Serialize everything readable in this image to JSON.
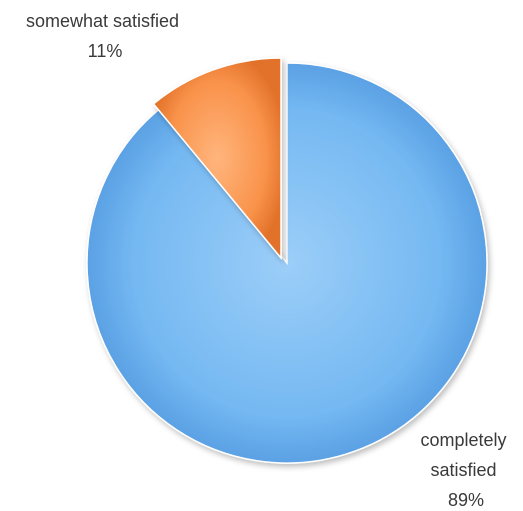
{
  "chart_data": {
    "type": "pie",
    "slices": [
      {
        "label_lines": [
          "completely",
          "satisfied"
        ],
        "percent_label": "89%",
        "value": 89,
        "color": "#5aaaf0"
      },
      {
        "label_lines": [
          "somewhat satisfied"
        ],
        "percent_label": "11%",
        "value": 11,
        "color": "#f5883f"
      }
    ],
    "legend": "none",
    "style": "3d-shaded"
  }
}
